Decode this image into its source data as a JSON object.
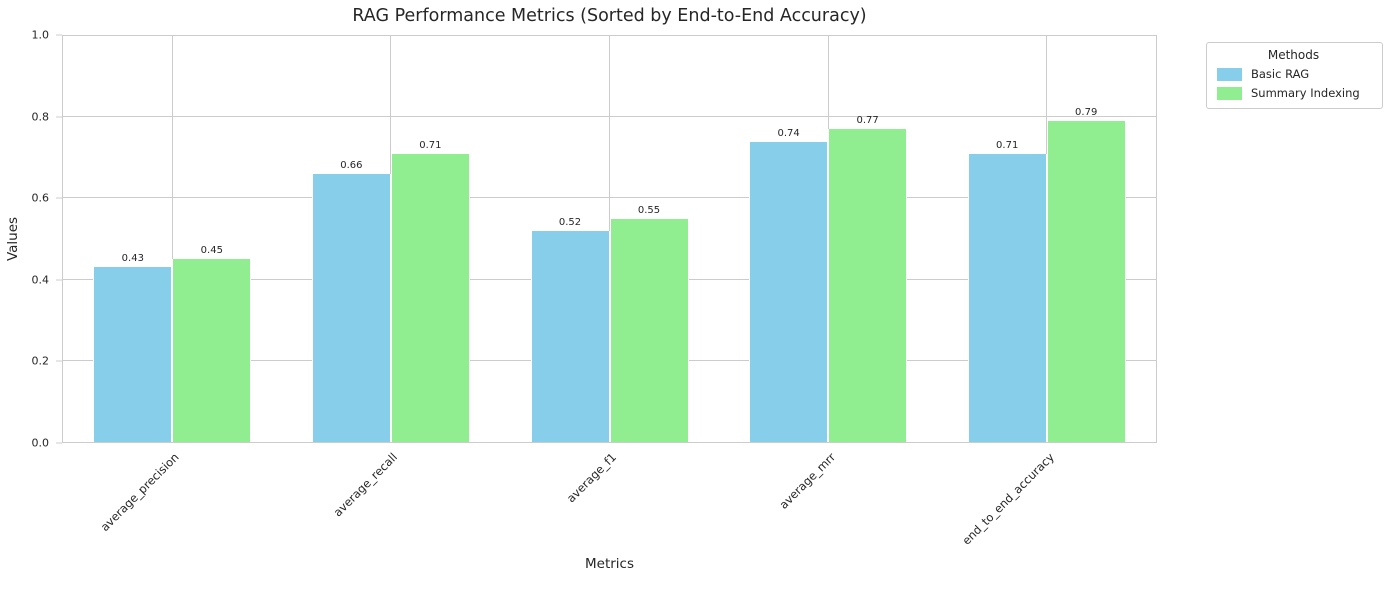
{
  "chart_data": {
    "type": "bar",
    "title": "RAG Performance Metrics (Sorted by End-to-End Accuracy)",
    "xlabel": "Metrics",
    "ylabel": "Values",
    "categories": [
      "average_precision",
      "average_recall",
      "average_f1",
      "average_mrr",
      "end_to_end_accuracy"
    ],
    "series": [
      {
        "name": "Basic RAG",
        "color": "#87CEEB",
        "values": [
          0.43,
          0.66,
          0.52,
          0.74,
          0.71
        ]
      },
      {
        "name": "Summary Indexing",
        "color": "#90EE90",
        "values": [
          0.45,
          0.71,
          0.55,
          0.77,
          0.79
        ]
      }
    ],
    "ylim": [
      0.0,
      1.0
    ],
    "yticks": [
      0.0,
      0.2,
      0.4,
      0.6,
      0.8,
      1.0
    ],
    "grid": true,
    "bar_labels": true,
    "legend": {
      "title": "Methods",
      "position": "upper-right-outside"
    }
  },
  "style": {
    "grid_color": "#cccccc",
    "text_color": "#262626",
    "background": "#ffffff"
  }
}
